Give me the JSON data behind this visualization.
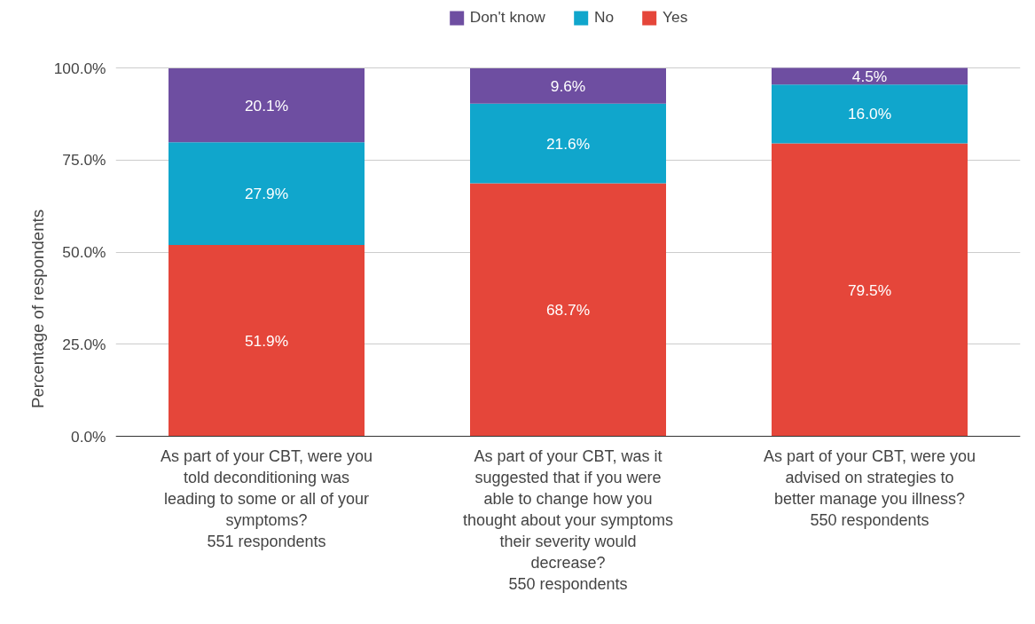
{
  "chart_data": {
    "type": "bar",
    "stacked": true,
    "ylabel": "Percentage of respondents",
    "categories": [
      "As part of your CBT, were you\ntold deconditioning was\nleading to some or all of your\nsymptoms?\n551 respondents",
      "As part of your CBT, was it\nsuggested that if you were\nable to change how you\nthought about your symptoms\ntheir severity would\ndecrease?\n550 respondents",
      "As part of your CBT, were you\nadvised on strategies to\nbetter manage you illness?\n550 respondents"
    ],
    "series": [
      {
        "name": "Yes",
        "color": "#e5463a",
        "values": [
          51.9,
          68.7,
          79.5
        ],
        "value_labels": [
          "51.9%",
          "68.7%",
          "79.5%"
        ]
      },
      {
        "name": "No",
        "color": "#10a6cc",
        "values": [
          27.9,
          21.6,
          16.0
        ],
        "value_labels": [
          "27.9%",
          "21.6%",
          "16.0%"
        ]
      },
      {
        "name": "Don't know",
        "color": "#6e4ea1",
        "values": [
          20.1,
          9.6,
          4.5
        ],
        "value_labels": [
          "20.1%",
          "9.6%",
          "4.5%"
        ]
      }
    ],
    "ylim": [
      0,
      100
    ],
    "yticks": [
      {
        "value": 0,
        "label": "0.0%"
      },
      {
        "value": 25,
        "label": "25.0%"
      },
      {
        "value": 50,
        "label": "50.0%"
      },
      {
        "value": 75,
        "label": "75.0%"
      },
      {
        "value": 100,
        "label": "100.0%"
      }
    ],
    "grid": "y",
    "legend": "top"
  }
}
